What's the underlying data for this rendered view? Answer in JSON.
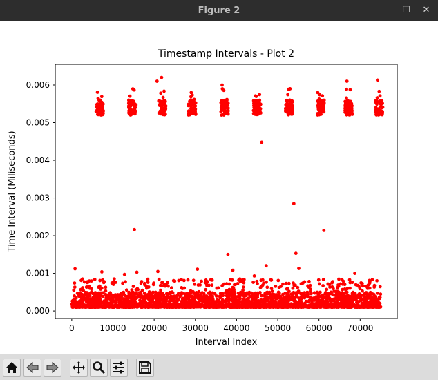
{
  "window": {
    "title": "Figure 2"
  },
  "window_controls": {
    "minimize": "–",
    "maximize": "☐",
    "close": "✕"
  },
  "toolbar": {
    "buttons": [
      "home",
      "back",
      "forward",
      "pan",
      "zoom",
      "configure-subplots",
      "save"
    ]
  },
  "colors": {
    "points": "#ff0000",
    "titlebar": "#2d2d2d",
    "toolbar": "#dcdcdc"
  },
  "chart_data": {
    "type": "scatter",
    "title": "Timestamp Intervals - Plot 2",
    "xlabel": "Interval Index",
    "ylabel": "Time Interval (Miliseconds)",
    "xlim": [
      -4000,
      79000
    ],
    "ylim": [
      -0.0002,
      0.00655
    ],
    "xticks": [
      0,
      10000,
      20000,
      30000,
      40000,
      50000,
      60000,
      70000
    ],
    "xtick_labels": [
      "0",
      "10000",
      "20000",
      "30000",
      "40000",
      "50000",
      "60000",
      "70000"
    ],
    "yticks": [
      0,
      0.001,
      0.002,
      0.003,
      0.004,
      0.005,
      0.006
    ],
    "ytick_labels": [
      "0.000",
      "0.001",
      "0.002",
      "0.003",
      "0.004",
      "0.005",
      "0.006"
    ],
    "grid": false,
    "color": "#ff0000",
    "baseline_band": {
      "x_range": [
        0,
        75000
      ],
      "y_range": [
        0.0001,
        0.0005
      ],
      "note_points_dense": true
    },
    "clusters": [
      {
        "x_center": 6800,
        "y_range": [
          0.0052,
          0.0056
        ]
      },
      {
        "x_center": 14700,
        "y_range": [
          0.0052,
          0.0056
        ]
      },
      {
        "x_center": 22000,
        "y_range": [
          0.0052,
          0.0056
        ]
      },
      {
        "x_center": 29200,
        "y_range": [
          0.0052,
          0.0056
        ]
      },
      {
        "x_center": 37100,
        "y_range": [
          0.0052,
          0.0056
        ]
      },
      {
        "x_center": 45000,
        "y_range": [
          0.0052,
          0.0056
        ]
      },
      {
        "x_center": 52800,
        "y_range": [
          0.0052,
          0.0056
        ]
      },
      {
        "x_center": 60400,
        "y_range": [
          0.0052,
          0.0056
        ]
      },
      {
        "x_center": 67200,
        "y_range": [
          0.0052,
          0.0056
        ]
      },
      {
        "x_center": 74600,
        "y_range": [
          0.0052,
          0.0056
        ]
      }
    ],
    "outliers": [
      {
        "x": 800,
        "y": 0.00112
      },
      {
        "x": 7300,
        "y": 0.00104
      },
      {
        "x": 12800,
        "y": 0.00097
      },
      {
        "x": 15200,
        "y": 0.00216
      },
      {
        "x": 15800,
        "y": 0.00103
      },
      {
        "x": 20900,
        "y": 0.00105
      },
      {
        "x": 20700,
        "y": 0.0061
      },
      {
        "x": 21800,
        "y": 0.0062
      },
      {
        "x": 29000,
        "y": 0.0058
      },
      {
        "x": 30500,
        "y": 0.00111
      },
      {
        "x": 36500,
        "y": 0.006
      },
      {
        "x": 37900,
        "y": 0.0015
      },
      {
        "x": 39100,
        "y": 0.00108
      },
      {
        "x": 44300,
        "y": 0.00093
      },
      {
        "x": 46100,
        "y": 0.00448
      },
      {
        "x": 47200,
        "y": 0.0012
      },
      {
        "x": 53000,
        "y": 0.0059
      },
      {
        "x": 53900,
        "y": 0.00285
      },
      {
        "x": 54400,
        "y": 0.00153
      },
      {
        "x": 55100,
        "y": 0.00113
      },
      {
        "x": 59700,
        "y": 0.0058
      },
      {
        "x": 61200,
        "y": 0.00214
      },
      {
        "x": 66800,
        "y": 0.0061
      },
      {
        "x": 68700,
        "y": 0.001
      },
      {
        "x": 74200,
        "y": 0.00613
      }
    ]
  }
}
